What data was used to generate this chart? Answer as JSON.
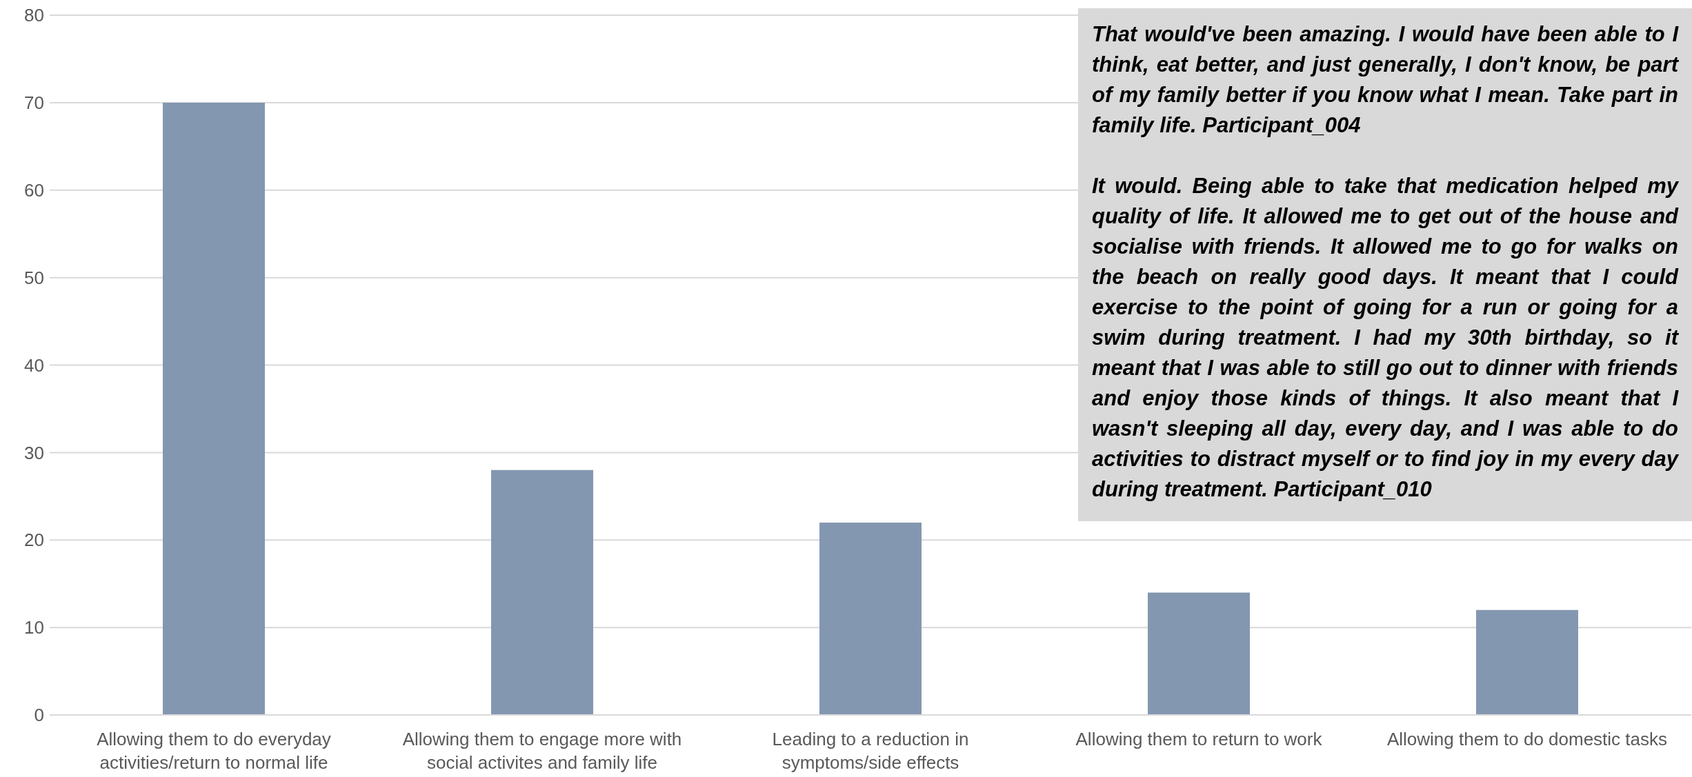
{
  "chart_data": {
    "type": "bar",
    "categories": [
      "Allowing them to do everyday activities/return to normal life",
      "Allowing them to engage more with social activites and family life",
      "Leading to a reduction in symptoms/side effects",
      "Allowing them to return to work",
      "Allowing them to do domestic tasks"
    ],
    "values": [
      70,
      28,
      22,
      14,
      12
    ],
    "color": "#8497b0",
    "ylim": [
      0,
      80
    ],
    "yticks": [
      0,
      10,
      20,
      30,
      40,
      50,
      60,
      70,
      80
    ],
    "grid": "y",
    "legend": false,
    "annotations": [
      "That would've been amazing. I would have been able to I think, eat better, and just generally, I don't know, be part of my family better if you know what I mean. Take part in family life. Participant_004",
      "It would. Being able to take that medication helped my quality of life. It allowed me to get out of the house and socialise with friends. It allowed me to go for walks on the beach on really good days. It meant that I could exercise to the point of going for a run or going for a swim during treatment. I had my 30th birthday, so it meant that I was able to still go out to dinner with friends and enjoy those kinds of things. It also meant that I wasn't sleeping all day, every day, and I was able to do activities to distract myself or to find joy in my every day during treatment.  Participant_010"
    ]
  }
}
